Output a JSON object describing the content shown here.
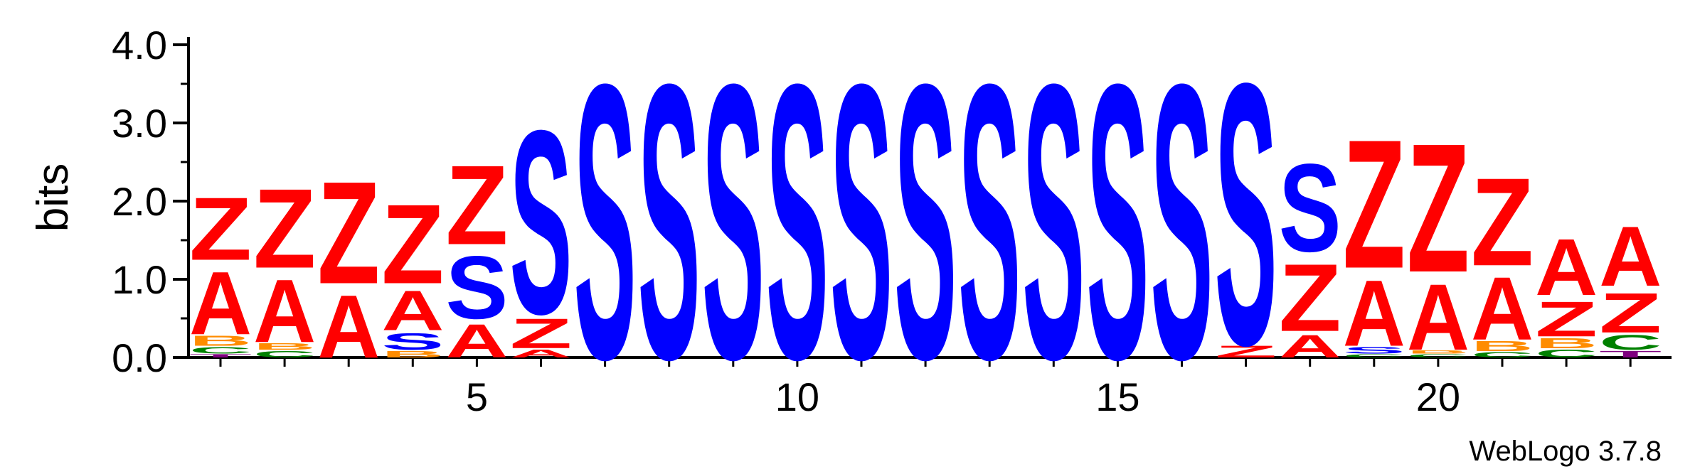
{
  "chart_data": {
    "type": "sequence-logo",
    "ylabel": "bits",
    "ylim": [
      0,
      4.0
    ],
    "y_ticks": [
      "0.0",
      "1.0",
      "2.0",
      "3.0",
      "4.0"
    ],
    "x_ticks": [
      {
        "pos": 5,
        "label": "5"
      },
      {
        "pos": 10,
        "label": "10"
      },
      {
        "pos": 15,
        "label": "15"
      },
      {
        "pos": 20,
        "label": "20"
      }
    ],
    "colors": {
      "S": "#0000ff",
      "Z": "#ff0000",
      "A": "#ff0000",
      "B": "#ff8c00",
      "C": "#008000",
      "T": "#800080"
    },
    "positions": [
      {
        "pos": 1,
        "stack": [
          [
            "T",
            0.05
          ],
          [
            "C",
            0.1
          ],
          [
            "B",
            0.15
          ],
          [
            "A",
            0.95
          ],
          [
            "Z",
            0.95
          ]
        ]
      },
      {
        "pos": 2,
        "stack": [
          [
            "C",
            0.1
          ],
          [
            "B",
            0.1
          ],
          [
            "A",
            0.95
          ],
          [
            "Z",
            1.2
          ]
        ]
      },
      {
        "pos": 3,
        "stack": [
          [
            "A",
            0.95
          ],
          [
            "Z",
            1.55
          ]
        ]
      },
      {
        "pos": 4,
        "stack": [
          [
            "B",
            0.1
          ],
          [
            "S",
            0.25
          ],
          [
            "A",
            0.6
          ],
          [
            "Z",
            1.2
          ]
        ]
      },
      {
        "pos": 5,
        "stack": [
          [
            "A",
            0.5
          ],
          [
            "S",
            0.95
          ],
          [
            "Z",
            1.2
          ]
        ]
      },
      {
        "pos": 6,
        "stack": [
          [
            "A",
            0.12
          ],
          [
            "Z",
            0.45
          ],
          [
            "S",
            2.78
          ]
        ]
      },
      {
        "pos": 7,
        "stack": [
          [
            "S",
            4.16
          ]
        ]
      },
      {
        "pos": 8,
        "stack": [
          [
            "S",
            4.16
          ]
        ]
      },
      {
        "pos": 9,
        "stack": [
          [
            "S",
            4.16
          ]
        ]
      },
      {
        "pos": 10,
        "stack": [
          [
            "S",
            4.16
          ]
        ]
      },
      {
        "pos": 11,
        "stack": [
          [
            "S",
            4.16
          ]
        ]
      },
      {
        "pos": 12,
        "stack": [
          [
            "S",
            4.16
          ]
        ]
      },
      {
        "pos": 13,
        "stack": [
          [
            "S",
            4.16
          ]
        ]
      },
      {
        "pos": 14,
        "stack": [
          [
            "S",
            4.16
          ]
        ]
      },
      {
        "pos": 15,
        "stack": [
          [
            "S",
            4.16
          ]
        ]
      },
      {
        "pos": 16,
        "stack": [
          [
            "S",
            4.16
          ]
        ]
      },
      {
        "pos": 17,
        "stack": [
          [
            "Z",
            0.18
          ],
          [
            "S",
            3.96
          ]
        ]
      },
      {
        "pos": 18,
        "stack": [
          [
            "A",
            0.34
          ],
          [
            "Z",
            1.02
          ],
          [
            "S",
            1.33
          ]
        ]
      },
      {
        "pos": 19,
        "stack": [
          [
            "C",
            0.05
          ],
          [
            "S",
            0.1
          ],
          [
            "A",
            1.0
          ],
          [
            "Z",
            1.95
          ]
        ]
      },
      {
        "pos": 20,
        "stack": [
          [
            "C",
            0.05
          ],
          [
            "B",
            0.05
          ],
          [
            "A",
            1.0
          ],
          [
            "Z",
            1.95
          ]
        ]
      },
      {
        "pos": 21,
        "stack": [
          [
            "C",
            0.08
          ],
          [
            "B",
            0.15
          ],
          [
            "A",
            0.95
          ],
          [
            "Z",
            1.33
          ]
        ]
      },
      {
        "pos": 22,
        "stack": [
          [
            "C",
            0.12
          ],
          [
            "B",
            0.15
          ],
          [
            "Z",
            0.53
          ],
          [
            "A",
            0.85
          ]
        ]
      },
      {
        "pos": 23,
        "stack": [
          [
            "T",
            0.1
          ],
          [
            "C",
            0.22
          ],
          [
            "Z",
            0.6
          ],
          [
            "A",
            0.9
          ]
        ]
      }
    ]
  },
  "credit": "WebLogo 3.7.8"
}
